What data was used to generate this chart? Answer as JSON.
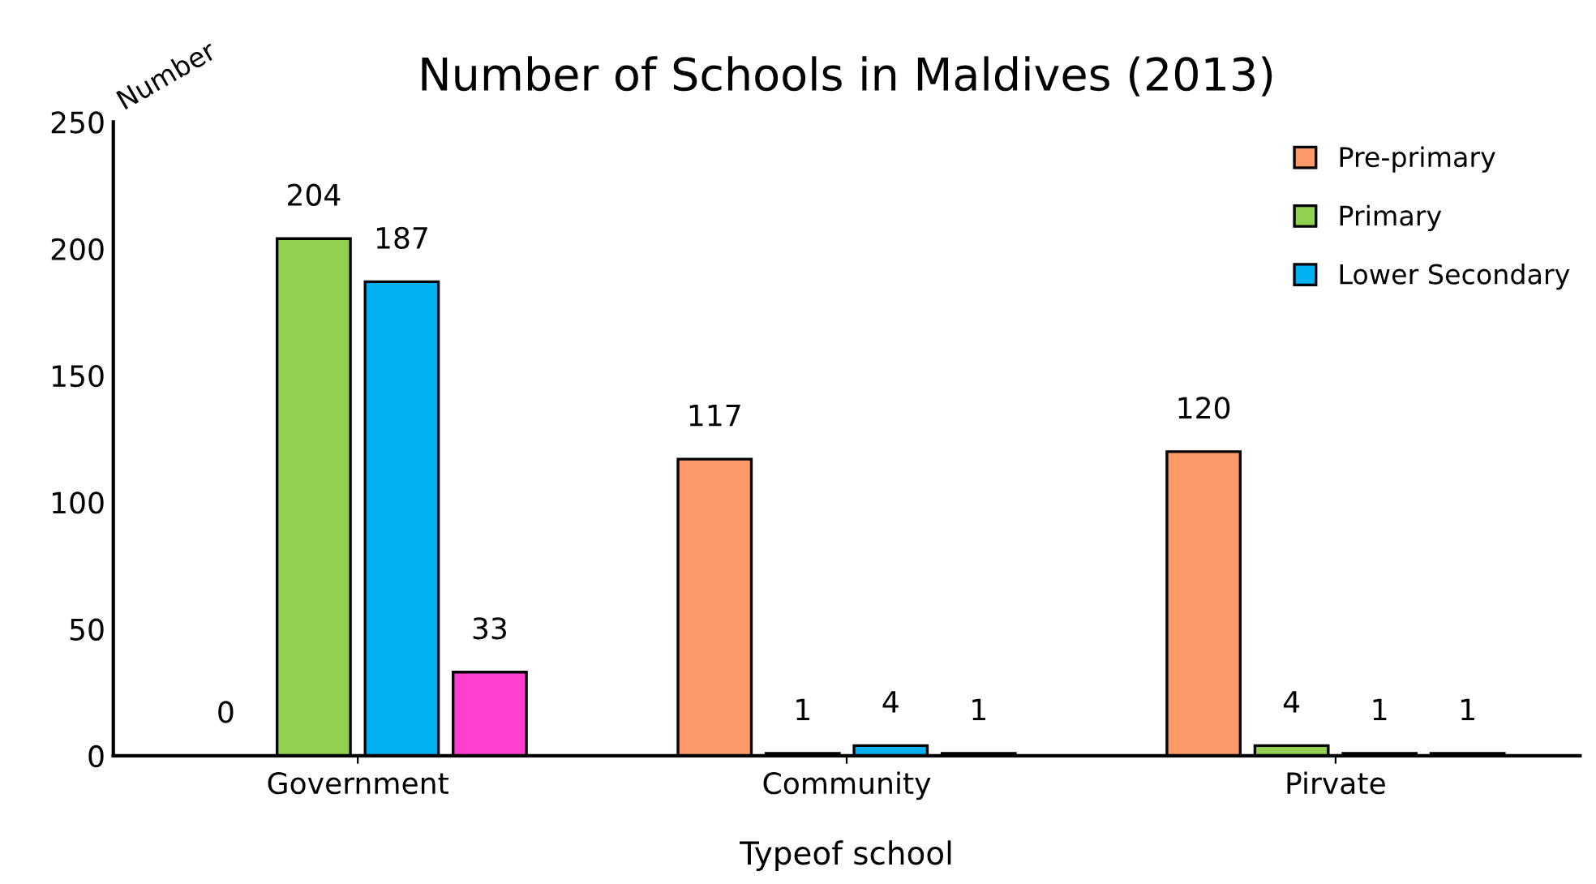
{
  "chart_data": {
    "type": "bar",
    "title": "Number of Schools in Maldives (2013)",
    "xlabel": "Typeof school",
    "ylabel": "Number",
    "categories": [
      "Government",
      "Community",
      "Pirvate"
    ],
    "series": [
      {
        "name": "Pre-primary",
        "color": "#fd9a6a",
        "values": [
          0,
          117,
          120
        ]
      },
      {
        "name": "Primary",
        "color": "#92d050",
        "values": [
          204,
          1,
          4
        ]
      },
      {
        "name": "Lower Secondary",
        "color": "#00b0f0",
        "values": [
          187,
          4,
          1
        ]
      },
      {
        "color": "#ff3fcf",
        "values": [
          33,
          1,
          1
        ]
      }
    ],
    "ylim": [
      0,
      250
    ],
    "yticks": [
      0,
      50,
      100,
      150,
      200,
      250
    ],
    "grid": false,
    "legend": "top right",
    "data_labels": true
  }
}
